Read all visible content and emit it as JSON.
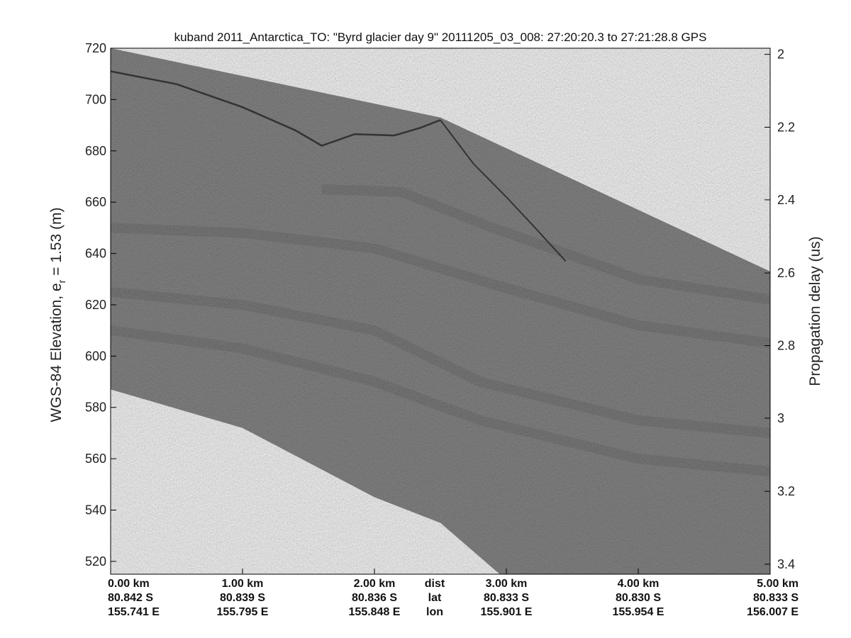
{
  "chart_data": {
    "type": "heatmap",
    "title": "kuband 2011_Antarctica_TO: \"Byrd glacier day 9\"  20111205_03_008: 27:20:20.3 to 27:21:28.8 GPS",
    "ylabel": "WGS-84 Elevation, e",
    "ylabel_sub": "r",
    "ylabel_tail": " = 1.53 (m)",
    "ylabel_right": "Propagation delay (us)",
    "xlim": [
      0,
      5
    ],
    "ylim": [
      515,
      720
    ],
    "y_ticks": [
      520,
      540,
      560,
      580,
      600,
      620,
      640,
      660,
      680,
      700,
      720
    ],
    "y_ticks_right": [
      "2",
      "2.2",
      "2.4",
      "2.6",
      "2.8",
      "3",
      "3.2",
      "3.4"
    ],
    "y_ticks_right_elev": [
      717.6,
      689.2,
      660.9,
      632.4,
      604.1,
      575.8,
      547.3,
      518.9
    ],
    "x_ticks": [
      {
        "x": 0,
        "dist": "0.00 km",
        "lat": "80.842 S",
        "lon": "155.741 E"
      },
      {
        "x": 1,
        "dist": "1.00 km",
        "lat": "80.839 S",
        "lon": "155.795 E"
      },
      {
        "x": 2,
        "dist": "2.00 km",
        "lat": "80.836 S",
        "lon": "155.848 E"
      },
      {
        "x": 3,
        "dist": "3.00 km",
        "lat": "80.833 S",
        "lon": "155.901 E"
      },
      {
        "x": 4,
        "dist": "4.00 km",
        "lat": "80.830 S",
        "lon": "155.954 E"
      },
      {
        "x": 5,
        "dist": "5.00 km",
        "lat": "80.833 S",
        "lon": "156.007 E"
      }
    ],
    "row_labels": {
      "dist": "dist",
      "lat": "lat",
      "lon": "lon"
    },
    "row_label_x": 2.5,
    "data_top": [
      [
        0,
        720
      ],
      [
        2.5,
        693
      ],
      [
        5,
        633
      ]
    ],
    "data_bottom": [
      [
        0,
        587
      ],
      [
        1,
        572
      ],
      [
        2,
        545
      ],
      [
        2.5,
        535
      ],
      [
        2.95,
        515
      ],
      [
        5,
        515
      ]
    ],
    "surface_line": [
      [
        0,
        711
      ],
      [
        0.5,
        706
      ],
      [
        1.0,
        697
      ],
      [
        1.4,
        688
      ],
      [
        1.6,
        682
      ],
      [
        1.85,
        686.5
      ],
      [
        2.15,
        686
      ],
      [
        2.35,
        689
      ],
      [
        2.5,
        692
      ]
    ],
    "internal_layer": [
      [
        2.5,
        692
      ],
      [
        2.75,
        675
      ],
      [
        3.0,
        662
      ],
      [
        3.2,
        651
      ],
      [
        3.45,
        637
      ]
    ],
    "bands": [
      [
        [
          0,
          625
        ],
        [
          1,
          620
        ],
        [
          2,
          610
        ],
        [
          2.8,
          590
        ],
        [
          4,
          575
        ],
        [
          5,
          570
        ]
      ],
      [
        [
          0,
          610
        ],
        [
          1,
          603
        ],
        [
          2,
          590
        ],
        [
          2.8,
          575
        ],
        [
          4,
          560
        ],
        [
          5,
          555
        ]
      ],
      [
        [
          0,
          650
        ],
        [
          1,
          648
        ],
        [
          2,
          642
        ],
        [
          2.9,
          628
        ],
        [
          4,
          612
        ],
        [
          5,
          605
        ]
      ],
      [
        [
          1.6,
          665
        ],
        [
          2.2,
          664
        ],
        [
          2.9,
          650
        ],
        [
          4,
          630
        ],
        [
          5,
          622
        ]
      ]
    ],
    "colors": {
      "echogram": "#8a8a8a",
      "dark": "#333333",
      "band": "#6a6a6a",
      "axis": "#000000"
    }
  }
}
